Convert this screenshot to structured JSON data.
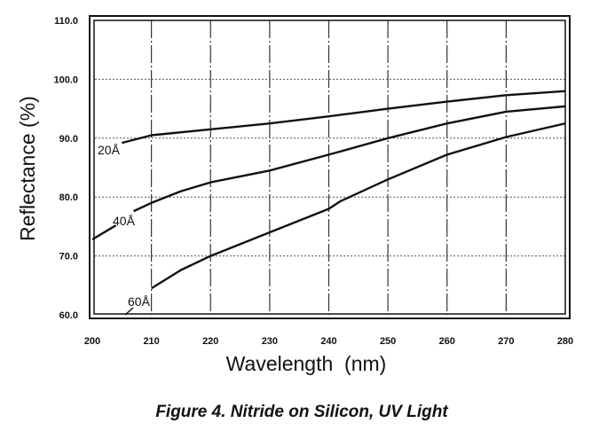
{
  "chart_data": {
    "type": "line",
    "title": "Figure 4. Nitride on Silicon, UV Light",
    "xlabel": "Wavelength  (nm)",
    "ylabel": "Reflectance  (%)",
    "xlim": [
      200,
      280
    ],
    "ylim": [
      60,
      110
    ],
    "grid": true,
    "xticks": [
      200,
      210,
      220,
      230,
      240,
      250,
      260,
      270,
      280
    ],
    "xtick_labels": [
      "200",
      "210",
      "220",
      "230",
      "240",
      "250",
      "260",
      "270",
      "280"
    ],
    "yticks": [
      60,
      70,
      80,
      90,
      100,
      110
    ],
    "ytick_labels": [
      "60.0",
      "70.0",
      "80.0",
      "90.0",
      "100.0",
      "110.0"
    ],
    "series": [
      {
        "name": "20Å",
        "x": [
          205,
          210,
          220,
          230,
          240,
          250,
          260,
          270,
          280
        ],
        "y": [
          89.2,
          90.5,
          91.5,
          92.5,
          93.7,
          95.0,
          96.2,
          97.3,
          98.0
        ]
      },
      {
        "name": "40Å",
        "x": [
          200,
          204,
          207,
          210,
          215,
          220,
          230,
          240,
          250,
          260,
          270,
          280
        ],
        "y": [
          72.8,
          75.2,
          77.6,
          79.0,
          81.0,
          82.5,
          84.5,
          87.2,
          90.0,
          92.5,
          94.5,
          95.4
        ],
        "gap": [
          204,
          207
        ]
      },
      {
        "name": "60Å",
        "x": [
          210,
          215,
          220,
          230,
          240,
          242,
          250,
          260,
          270,
          280
        ],
        "y": [
          64.5,
          67.6,
          70.0,
          74.0,
          78.0,
          79.3,
          83.0,
          87.2,
          90.2,
          92.5
        ]
      }
    ],
    "legend": "inline-labels"
  }
}
